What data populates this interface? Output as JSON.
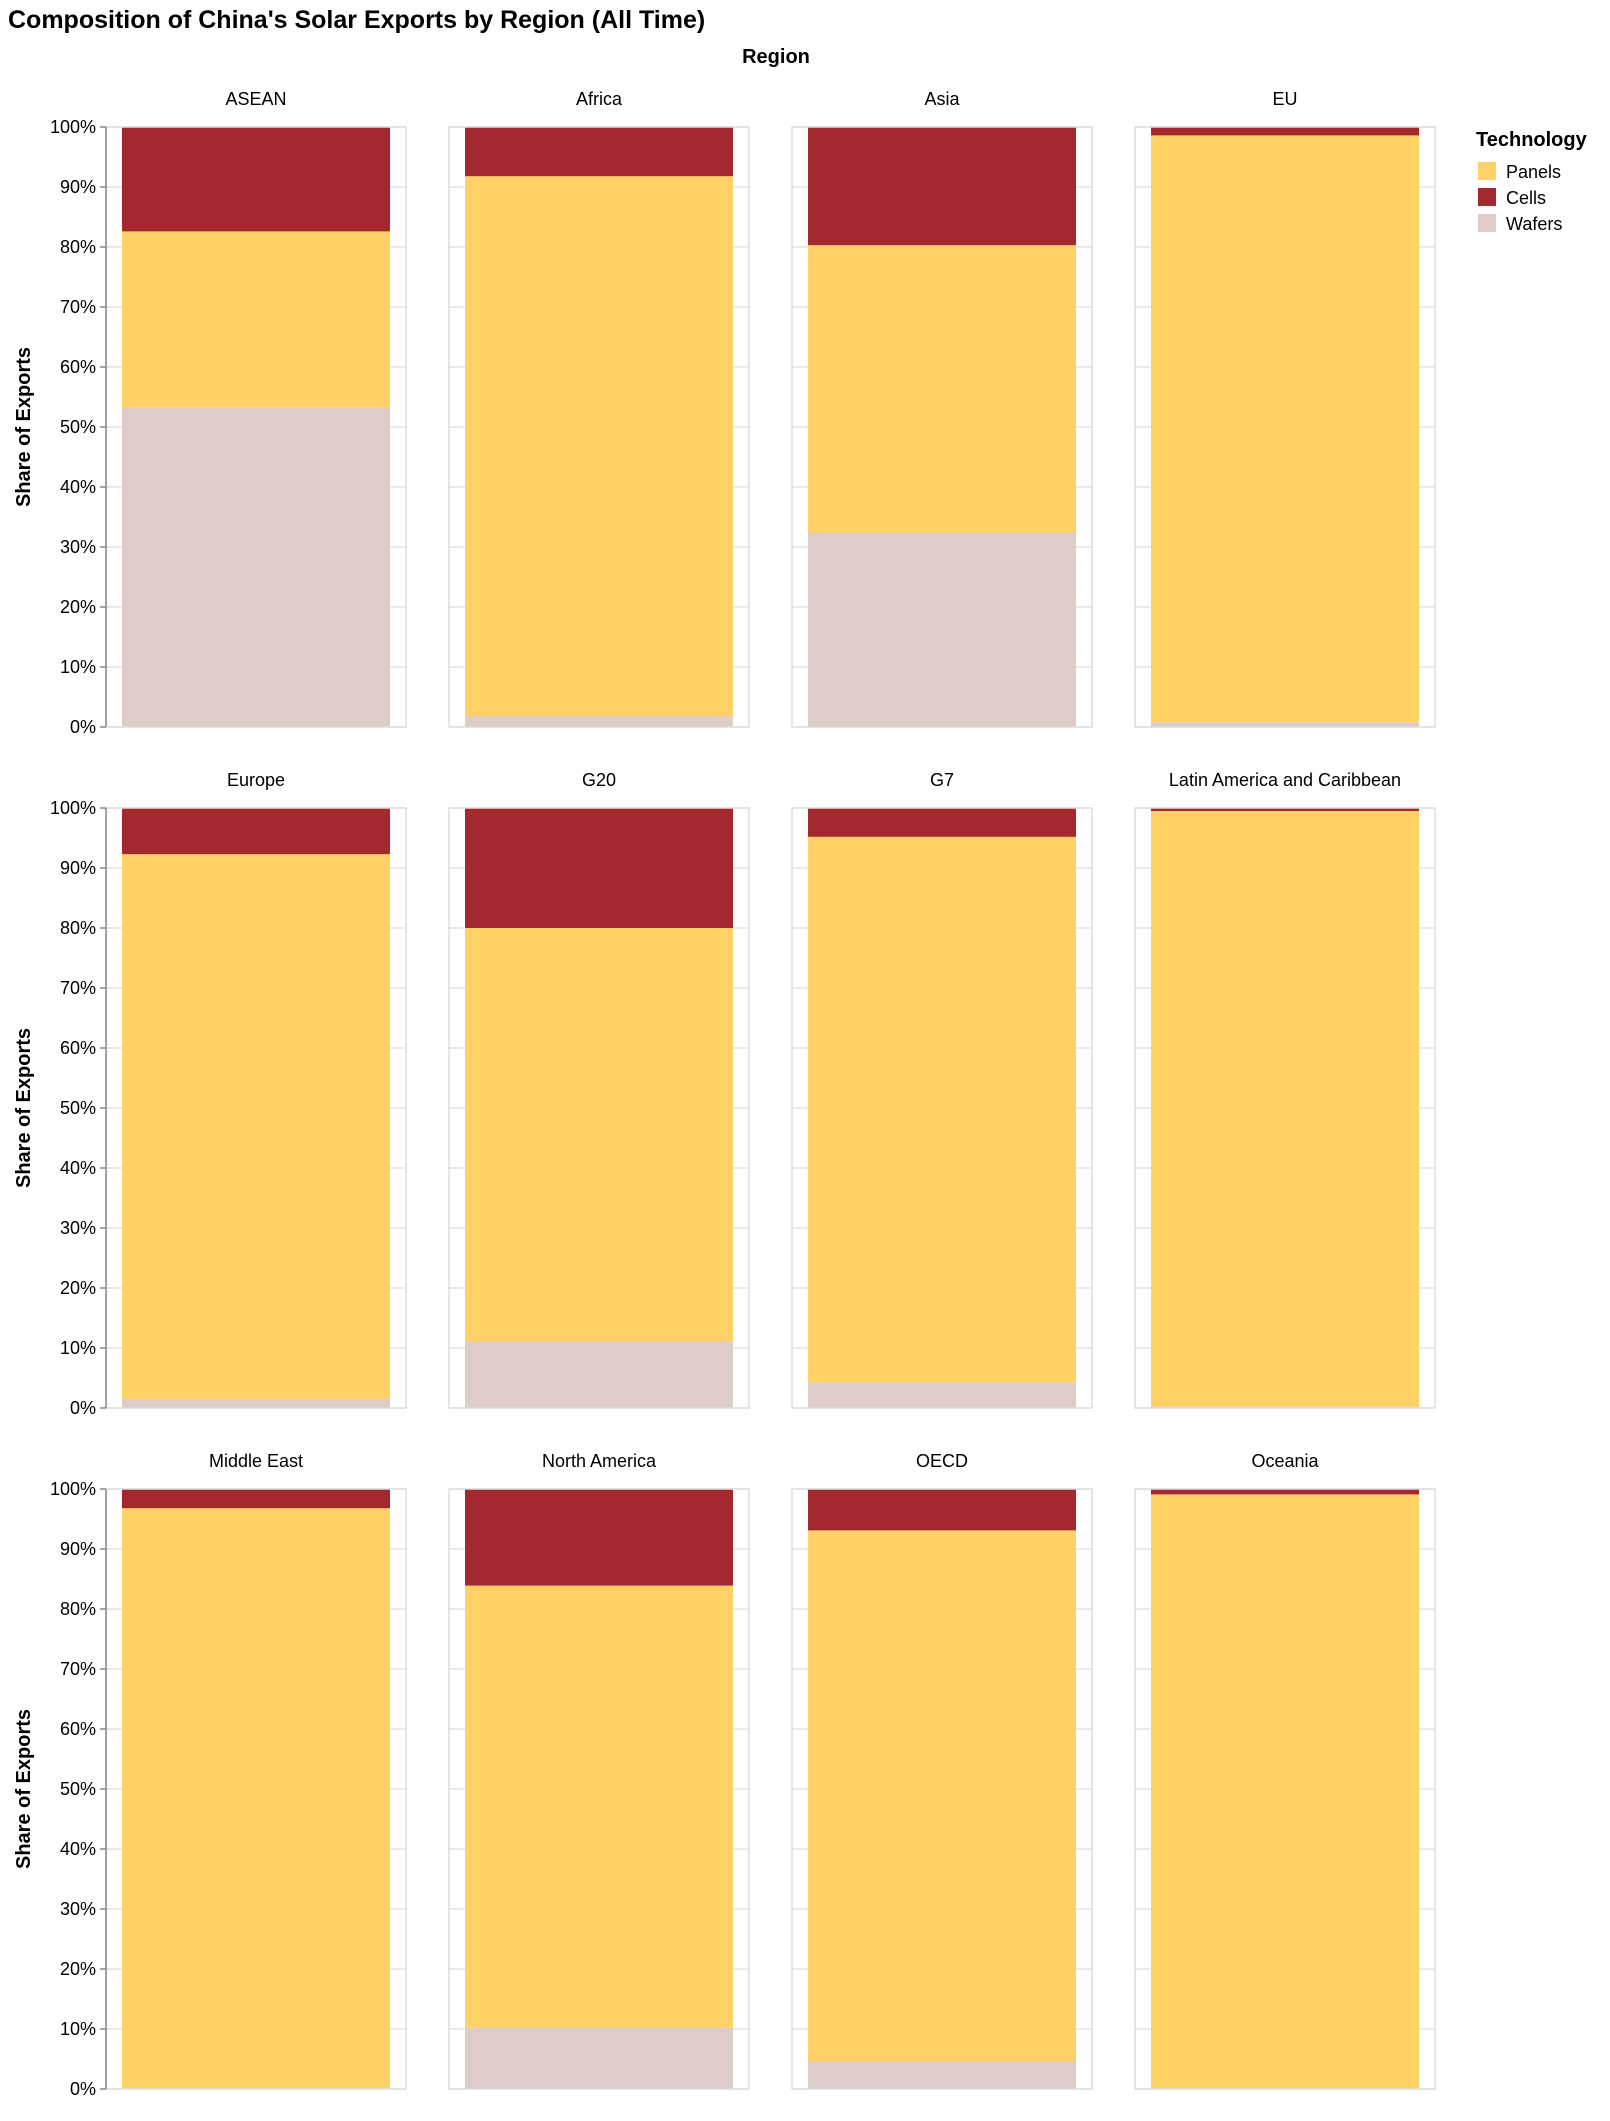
{
  "chart_data": {
    "type": "bar",
    "title": "Composition of China's Solar Exports by Region (All Time)",
    "column_title": "Region",
    "ylabel": "Share of Exports",
    "ylim": [
      0,
      1
    ],
    "y_ticks": [
      "0%",
      "10%",
      "20%",
      "30%",
      "40%",
      "50%",
      "60%",
      "70%",
      "80%",
      "90%",
      "100%"
    ],
    "grid": true,
    "stacked": true,
    "normalized": true,
    "legend": {
      "title": "Technology",
      "placement": "top-right",
      "items": [
        {
          "name": "Panels",
          "color": "#ffd166"
        },
        {
          "name": "Cells",
          "color": "#a4292e"
        },
        {
          "name": "Wafers",
          "color": "#ddccc7"
        }
      ]
    },
    "stack_order": [
      "Wafers",
      "Panels",
      "Cells"
    ],
    "colors": {
      "Panels": "#ffd166",
      "Cells": "#a4292e",
      "Wafers": "#ddccc7"
    },
    "panels": [
      {
        "region": "ASEAN",
        "Wafers": 0.532,
        "Panels": 0.294,
        "Cells": 0.174
      },
      {
        "region": "Africa",
        "Wafers": 0.018,
        "Panels": 0.9,
        "Cells": 0.082
      },
      {
        "region": "Asia",
        "Wafers": 0.324,
        "Panels": 0.479,
        "Cells": 0.197
      },
      {
        "region": "EU",
        "Wafers": 0.008,
        "Panels": 0.978,
        "Cells": 0.014
      },
      {
        "region": "Europe",
        "Wafers": 0.014,
        "Panels": 0.909,
        "Cells": 0.077
      },
      {
        "region": "G20",
        "Wafers": 0.111,
        "Panels": 0.689,
        "Cells": 0.2
      },
      {
        "region": "G7",
        "Wafers": 0.043,
        "Panels": 0.909,
        "Cells": 0.048
      },
      {
        "region": "Latin America and Caribbean",
        "Wafers": 0.002,
        "Panels": 0.993,
        "Cells": 0.005
      },
      {
        "region": "Middle East",
        "Wafers": 0.001,
        "Panels": 0.967,
        "Cells": 0.032
      },
      {
        "region": "North America",
        "Wafers": 0.102,
        "Panels": 0.737,
        "Cells": 0.161
      },
      {
        "region": "OECD",
        "Wafers": 0.046,
        "Panels": 0.885,
        "Cells": 0.069
      },
      {
        "region": "Oceania",
        "Wafers": 0.001,
        "Panels": 0.99,
        "Cells": 0.009
      }
    ]
  }
}
